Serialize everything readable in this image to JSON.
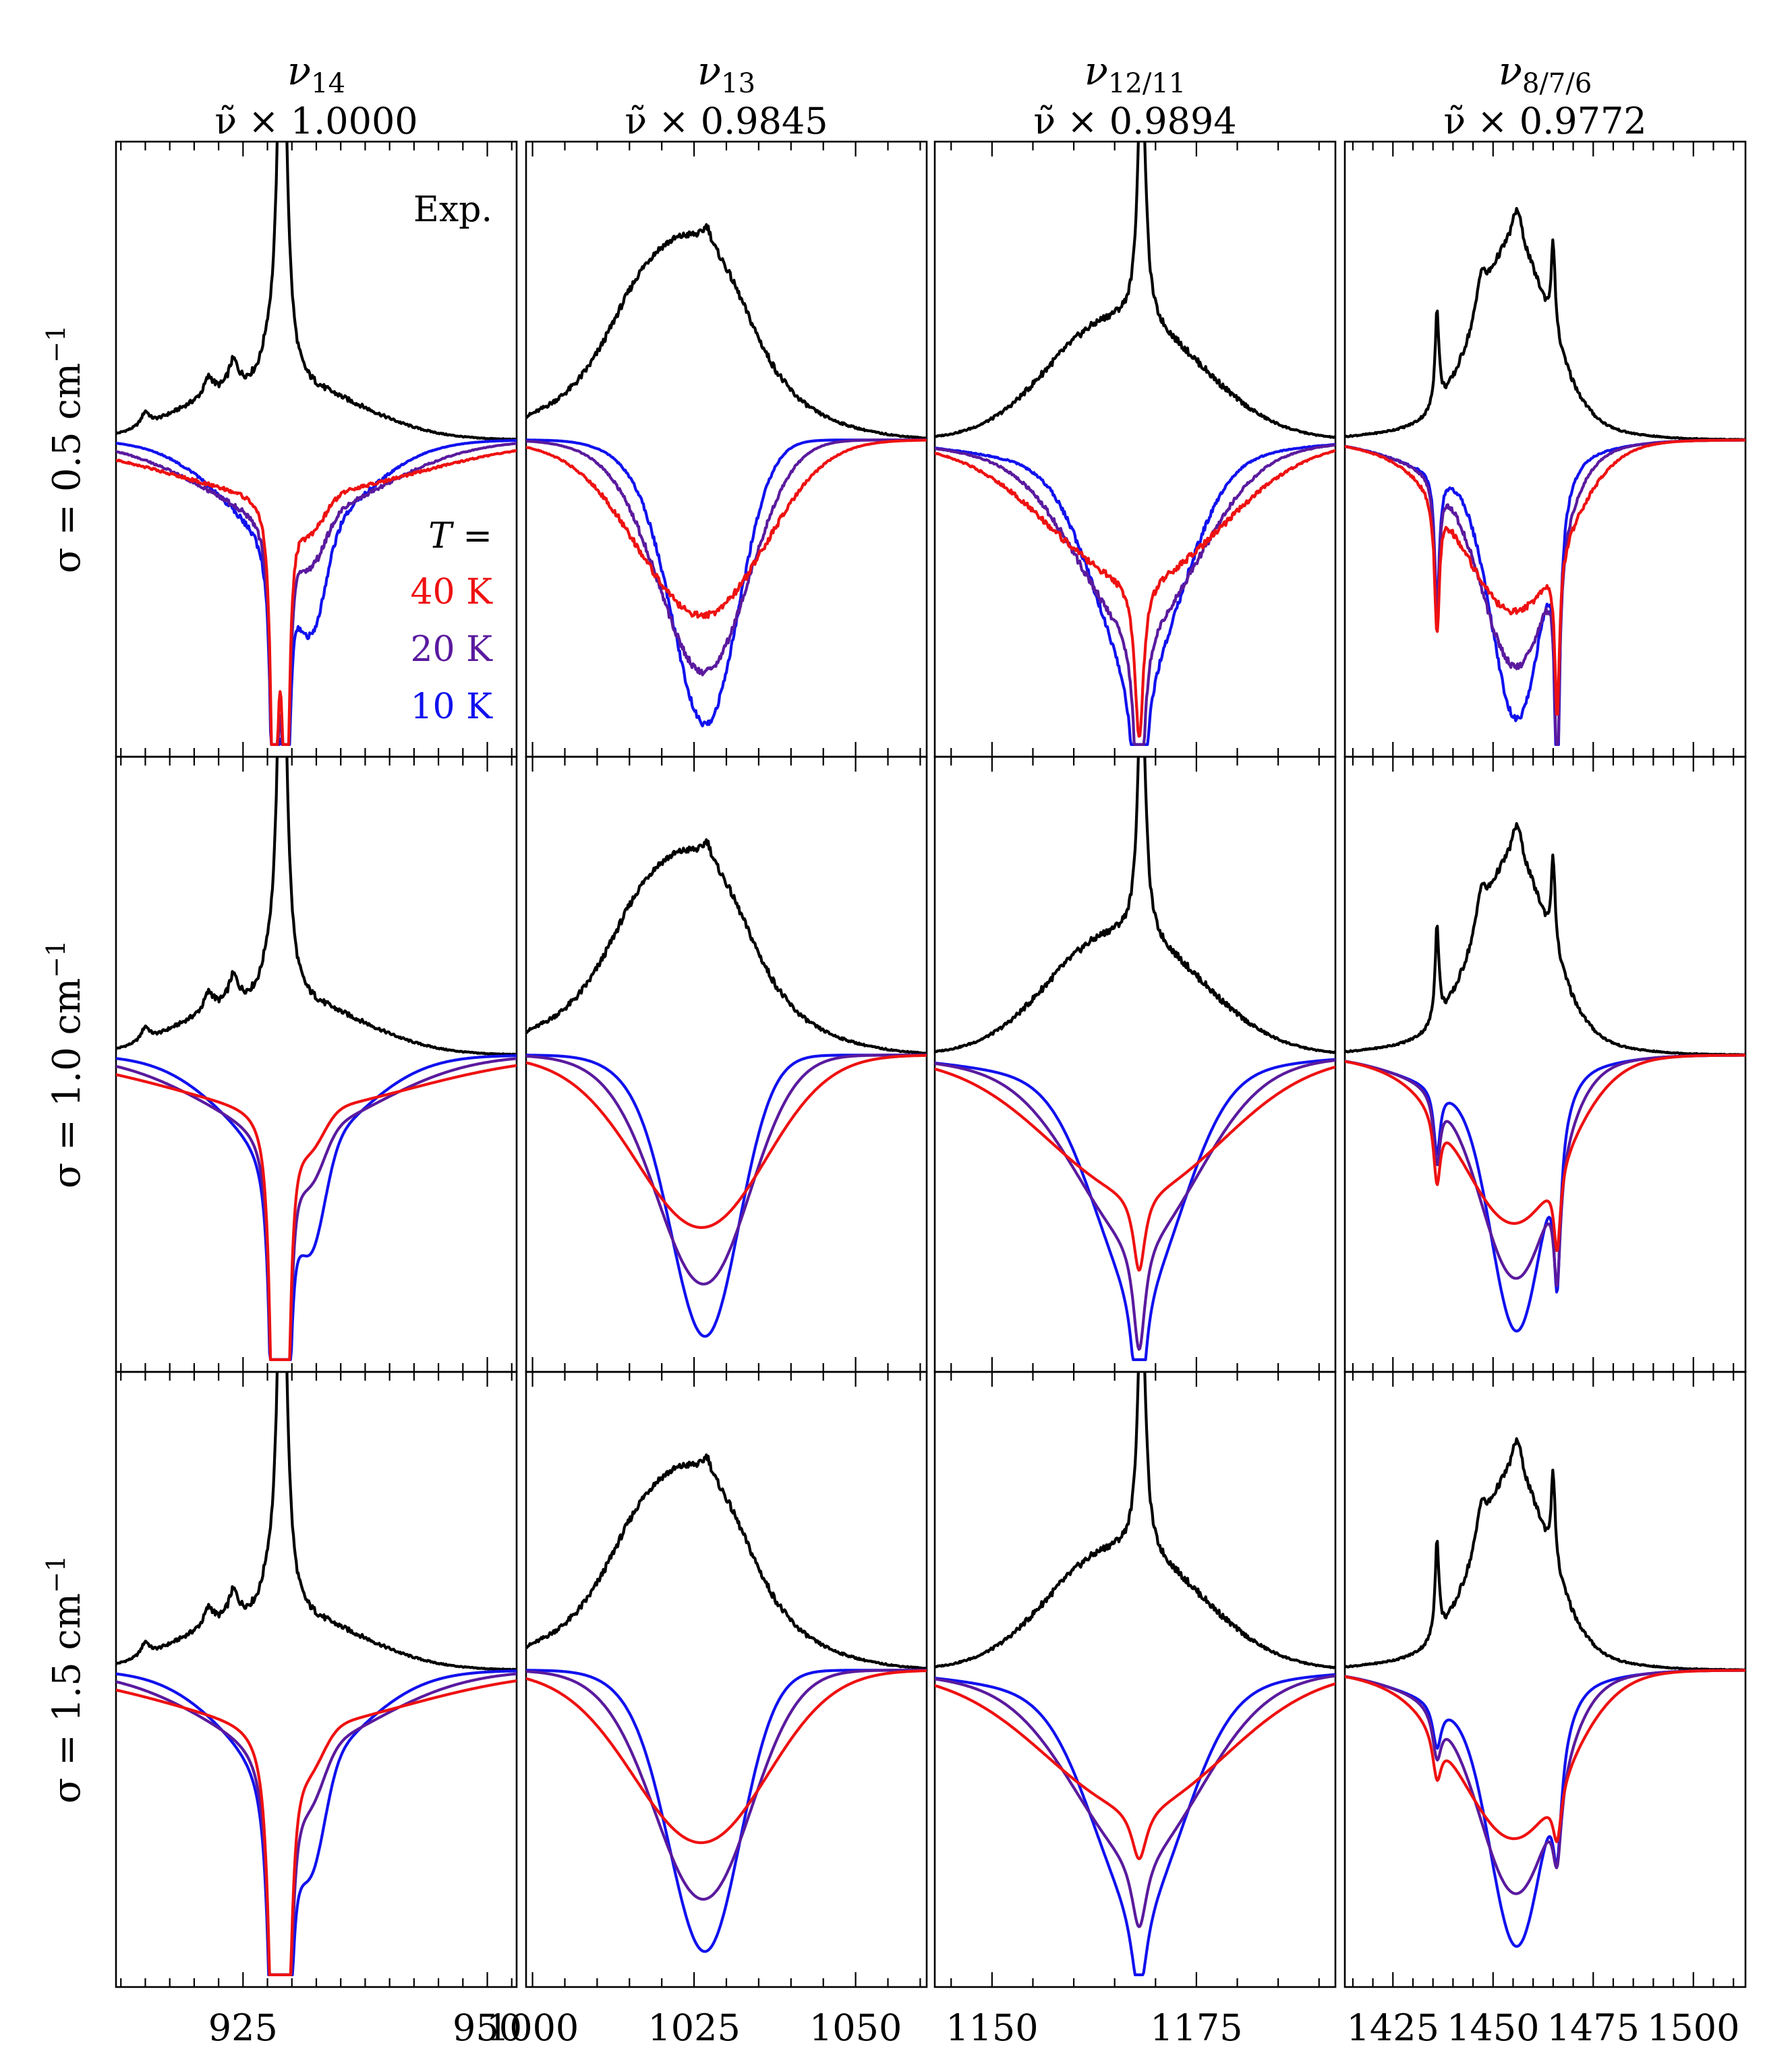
{
  "chart_data": {
    "type": "line",
    "description_visible": "4x3 panel grid of IR spectra: experiment (up) vs simulations (inverted) at three temperatures",
    "columns": [
      {
        "id": "v14",
        "label_base": "ν",
        "label_sub": "14",
        "scale_text": "ν̃ × 1.0000",
        "xlim": [
          912,
          953
        ],
        "ticks": [
          925,
          950
        ],
        "minor_step": 2.5,
        "peak_exp": [
          [
            915,
            0.03
          ],
          [
            922,
            0.11
          ],
          [
            924,
            0.16
          ],
          [
            927.5,
            0.2
          ],
          [
            929,
            1.4
          ]
        ],
        "sim_peaks": [
          [
            928.5,
            0.05
          ],
          [
            932,
            0.02
          ]
        ]
      },
      {
        "id": "v13",
        "label_base": "ν",
        "label_sub": "13",
        "scale_text": "ν̃ × 0.9845",
        "xlim": [
          999,
          1061
        ],
        "ticks": [
          1000,
          1025,
          1050
        ],
        "minor_step": 5,
        "peak_exp": [
          [
            1017,
            0.28
          ],
          [
            1026,
            0.34
          ],
          [
            1036,
            0.1
          ]
        ],
        "sim_peaks": [
          [
            1026,
            1.0
          ]
        ]
      },
      {
        "id": "v12",
        "label_base": "ν",
        "label_sub": "12/11",
        "scale_text": "ν̃ × 0.9894",
        "xlim": [
          1143,
          1192
        ],
        "ticks": [
          1150,
          1175
        ],
        "minor_step": 5,
        "peak_exp": [
          [
            1168.5,
            0.95
          ]
        ],
        "sim_peaks": [
          [
            1168,
            1.0
          ]
        ]
      },
      {
        "id": "v876",
        "label_base": "ν",
        "label_sub": "8/7/6",
        "scale_text": "ν̃ × 0.9772",
        "xlim": [
          1413,
          1513
        ],
        "ticks": [
          1425,
          1450,
          1475,
          1500
        ],
        "minor_step": 5,
        "peak_exp": [
          [
            1436,
            0.55
          ],
          [
            1447,
            0.58
          ],
          [
            1456,
            0.6
          ],
          [
            1465,
            0.55
          ]
        ],
        "sim_peaks": [
          [
            1456,
            1.0
          ],
          [
            1466,
            0.4
          ]
        ]
      }
    ],
    "rows": [
      {
        "sigma_label": "σ = 0.5 cm",
        "sigma_sup": "−1",
        "sigma": 0.5
      },
      {
        "sigma_label": "σ = 1.0 cm",
        "sigma_sup": "−1",
        "sigma": 1.0
      },
      {
        "sigma_label": "σ = 1.5 cm",
        "sigma_sup": "−1",
        "sigma": 1.5
      }
    ],
    "series": [
      {
        "name": "Exp.",
        "color": "#000000"
      },
      {
        "name": "40 K",
        "color": "#ee1111"
      },
      {
        "name": "20 K",
        "color": "#5a1a9e"
      },
      {
        "name": "10 K",
        "color": "#1111ee"
      }
    ],
    "xlabel": "",
    "ylabel": ""
  },
  "legend": {
    "exp_label": "Exp.",
    "t_label": "T =",
    "t40": "40 K",
    "t20": "20 K",
    "t10": "10 K"
  }
}
